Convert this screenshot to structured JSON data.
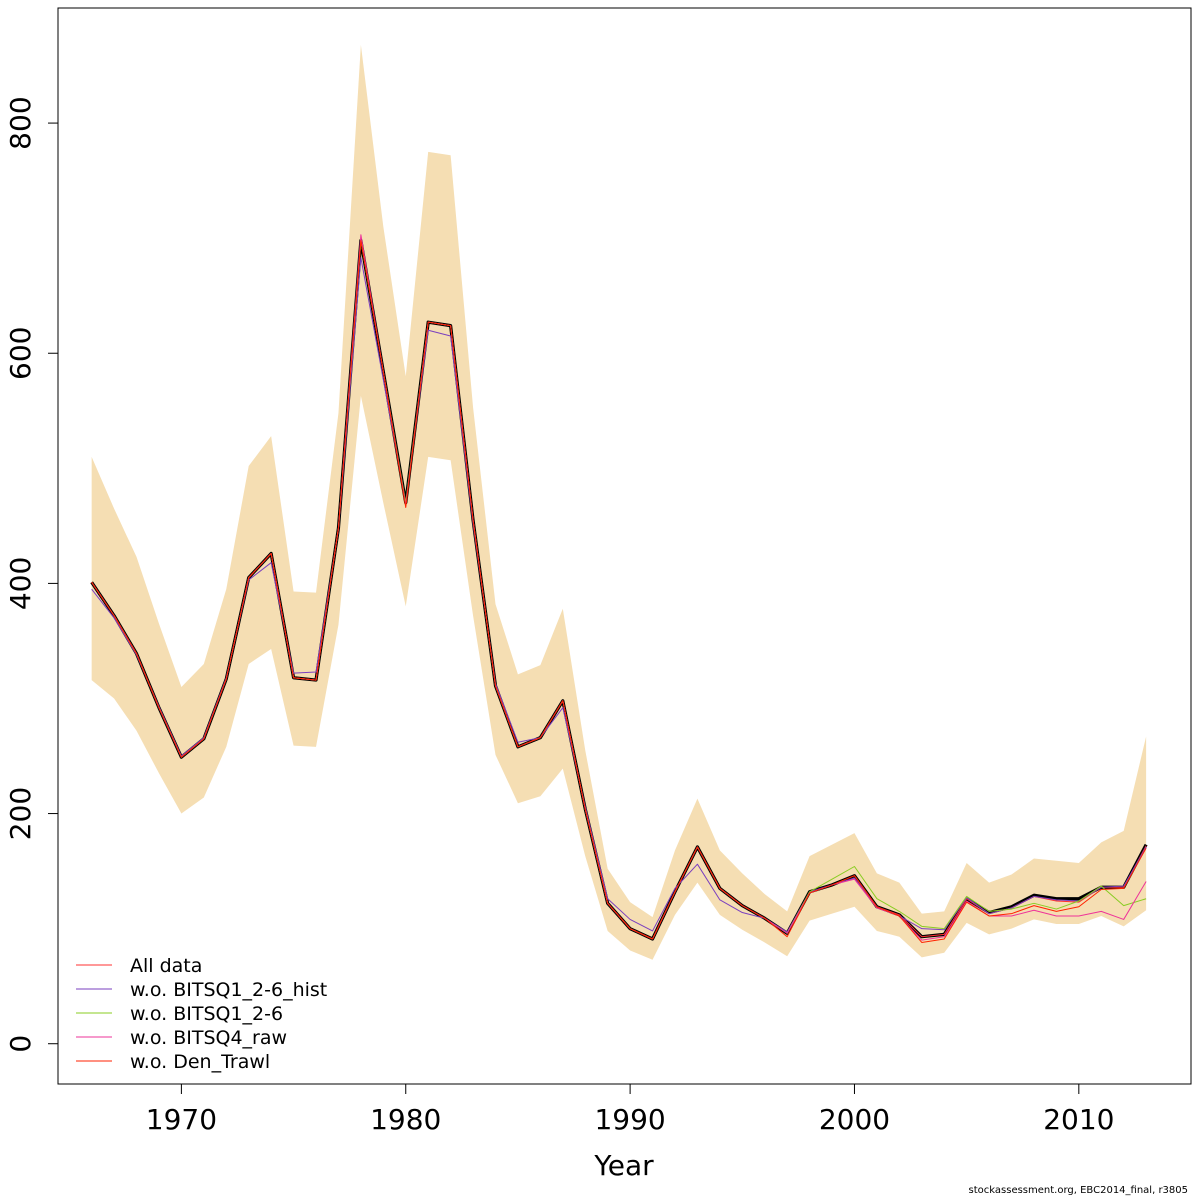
{
  "chart_data": {
    "type": "line",
    "xlabel": "Year",
    "ylabel": "",
    "xlim": [
      1964.5,
      2015
    ],
    "ylim": [
      -35,
      900
    ],
    "x_ticks": [
      1970,
      1980,
      1990,
      2000,
      2010
    ],
    "y_ticks": [
      0,
      200,
      400,
      600,
      800
    ],
    "legend_position": "bottom-left",
    "x": [
      1966,
      1967,
      1968,
      1969,
      1970,
      1971,
      1972,
      1973,
      1974,
      1975,
      1976,
      1977,
      1978,
      1979,
      1980,
      1981,
      1982,
      1983,
      1984,
      1985,
      1986,
      1987,
      1988,
      1989,
      1990,
      1991,
      1992,
      1993,
      1994,
      1995,
      1996,
      1997,
      1998,
      1999,
      2000,
      2001,
      2002,
      2003,
      2004,
      2005,
      2006,
      2007,
      2008,
      2009,
      2010,
      2011,
      2012,
      2013
    ],
    "confidence_band": {
      "color": "#f5deb3",
      "upper": [
        510,
        465,
        423,
        365,
        310,
        330,
        395,
        502,
        528,
        393,
        392,
        548,
        868,
        710,
        580,
        775,
        772,
        553,
        382,
        321,
        329,
        378,
        255,
        152,
        123,
        110,
        168,
        213,
        168,
        148,
        130,
        115,
        163,
        173,
        183,
        148,
        140,
        113,
        115,
        157,
        140,
        147,
        161,
        159,
        157,
        175,
        185,
        267
      ],
      "lower": [
        316,
        300,
        272,
        235,
        200,
        214,
        258,
        330,
        343,
        259,
        258,
        364,
        563,
        470,
        380,
        510,
        507,
        372,
        251,
        209,
        215,
        239,
        163,
        98,
        81,
        73,
        112,
        140,
        112,
        99,
        88,
        76,
        107,
        113,
        119,
        98,
        93,
        75,
        79,
        105,
        95,
        100,
        108,
        104,
        104,
        111,
        102,
        116
      ]
    },
    "series": [
      {
        "name": "All data",
        "color": "#ff3030",
        "width": 1,
        "values": [
          401,
          372,
          339,
          292,
          249,
          265,
          317,
          405,
          426,
          318,
          316,
          448,
          698,
          584,
          468,
          627,
          624,
          455,
          311,
          258,
          266,
          298,
          204,
          122,
          100,
          91,
          132,
          171,
          135,
          120,
          109,
          96,
          131,
          138,
          146,
          119,
          112,
          93,
          95,
          126,
          113,
          118,
          128,
          124,
          123,
          136,
          136,
          172
        ]
      },
      {
        "name": "w.o. BITSQ1_2-6_hist",
        "color": "#7a3fbf",
        "width": 1,
        "values": [
          395,
          370,
          338,
          293,
          250,
          266,
          318,
          403,
          418,
          322,
          323,
          447,
          683,
          577,
          470,
          620,
          615,
          452,
          313,
          262,
          266,
          292,
          206,
          126,
          108,
          98,
          135,
          156,
          125,
          114,
          109,
          97,
          132,
          138,
          144,
          119,
          111,
          100,
          99,
          127,
          113,
          118,
          128,
          125,
          124,
          136,
          137,
          171
        ]
      },
      {
        "name": "w.o. BITSQ1_2-6",
        "color": "#88cc22",
        "width": 1,
        "values": [
          401,
          372,
          339,
          292,
          249,
          265,
          317,
          405,
          426,
          318,
          316,
          448,
          698,
          584,
          470,
          627,
          624,
          455,
          311,
          258,
          266,
          298,
          204,
          122,
          100,
          91,
          132,
          171,
          135,
          120,
          109,
          96,
          132,
          143,
          154,
          126,
          115,
          102,
          100,
          128,
          115,
          117,
          122,
          117,
          124,
          137,
          120,
          126
        ]
      },
      {
        "name": "w.o. BITSQ4_raw",
        "color": "#ee3399",
        "width": 1,
        "values": [
          401,
          372,
          339,
          292,
          249,
          265,
          317,
          405,
          426,
          318,
          316,
          448,
          703,
          584,
          468,
          627,
          624,
          455,
          311,
          258,
          266,
          298,
          204,
          122,
          100,
          91,
          132,
          171,
          135,
          120,
          109,
          96,
          131,
          138,
          143,
          118,
          111,
          90,
          93,
          124,
          111,
          111,
          116,
          111,
          111,
          115,
          108,
          141
        ]
      },
      {
        "name": "w.o. Den_Trawl",
        "color": "#ff2200",
        "width": 1,
        "values": [
          401,
          372,
          339,
          292,
          249,
          265,
          317,
          405,
          426,
          318,
          316,
          448,
          698,
          584,
          466,
          627,
          624,
          455,
          311,
          258,
          266,
          298,
          204,
          122,
          100,
          91,
          132,
          171,
          135,
          120,
          109,
          93,
          131,
          138,
          146,
          119,
          111,
          88,
          91,
          123,
          111,
          113,
          120,
          115,
          119,
          134,
          135,
          170
        ]
      }
    ],
    "base_series": {
      "color": "#000000",
      "values": [
        401,
        372,
        339,
        292,
        249,
        265,
        317,
        405,
        426,
        318,
        316,
        448,
        698,
        584,
        470,
        627,
        624,
        455,
        311,
        258,
        266,
        298,
        204,
        122,
        100,
        91,
        132,
        171,
        135,
        120,
        109,
        96,
        132,
        138,
        146,
        119,
        112,
        93,
        95,
        126,
        114,
        119,
        129,
        126,
        126,
        136,
        136,
        173
      ]
    }
  },
  "footer": "stockassessment.org, EBC2014_final, r3805"
}
